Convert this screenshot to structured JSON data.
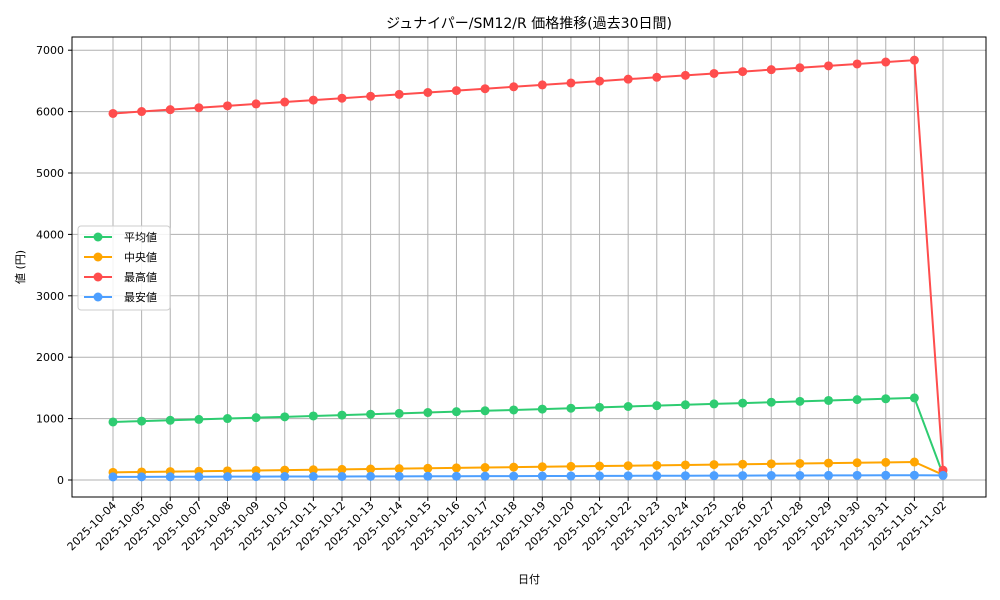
{
  "chart_data": {
    "type": "line",
    "title": "ジュナイパー/SM12/R 価格推移(過去30日間)",
    "xlabel": "日付",
    "ylabel": "値 (円)",
    "ylim": [
      -280,
      7200
    ],
    "yticks": [
      0,
      1000,
      2000,
      3000,
      4000,
      5000,
      6000,
      7000
    ],
    "grid": true,
    "legend_position": "center left",
    "categories": [
      "2025-10-04",
      "2025-10-05",
      "2025-10-06",
      "2025-10-07",
      "2025-10-08",
      "2025-10-09",
      "2025-10-10",
      "2025-10-11",
      "2025-10-12",
      "2025-10-13",
      "2025-10-14",
      "2025-10-15",
      "2025-10-16",
      "2025-10-17",
      "2025-10-18",
      "2025-10-19",
      "2025-10-20",
      "2025-10-21",
      "2025-10-22",
      "2025-10-23",
      "2025-10-24",
      "2025-10-25",
      "2025-10-26",
      "2025-10-27",
      "2025-10-28",
      "2025-10-29",
      "2025-10-30",
      "2025-10-31",
      "2025-11-01",
      "2025-11-02"
    ],
    "series": [
      {
        "name": "平均値",
        "color": "#2ecc71",
        "values": [
          945,
          959,
          973,
          987,
          1001,
          1015,
          1029,
          1043,
          1057,
          1071,
          1085,
          1099,
          1113,
          1127,
          1141,
          1155,
          1169,
          1183,
          1197,
          1211,
          1225,
          1239,
          1253,
          1267,
          1281,
          1295,
          1309,
          1323,
          1337,
          90
        ]
      },
      {
        "name": "中央値",
        "color": "#ffa500",
        "values": [
          125,
          131,
          137,
          143,
          149,
          155,
          161,
          167,
          173,
          179,
          185,
          191,
          197,
          203,
          209,
          215,
          221,
          227,
          233,
          239,
          245,
          251,
          257,
          263,
          269,
          275,
          281,
          287,
          293,
          85
        ]
      },
      {
        "name": "最高値",
        "color": "#ff4d4d",
        "values": [
          5970,
          6001,
          6032,
          6063,
          6094,
          6125,
          6156,
          6187,
          6218,
          6249,
          6280,
          6311,
          6342,
          6373,
          6404,
          6435,
          6466,
          6497,
          6528,
          6559,
          6590,
          6621,
          6652,
          6683,
          6714,
          6745,
          6776,
          6807,
          6838,
          160
        ]
      },
      {
        "name": "最安値",
        "color": "#4d9fff",
        "values": [
          50,
          51,
          52,
          53,
          54,
          55,
          56,
          57,
          58,
          59,
          60,
          61,
          62,
          63,
          64,
          65,
          66,
          67,
          68,
          69,
          70,
          71,
          72,
          73,
          74,
          75,
          76,
          77,
          78,
          75
        ]
      }
    ]
  }
}
